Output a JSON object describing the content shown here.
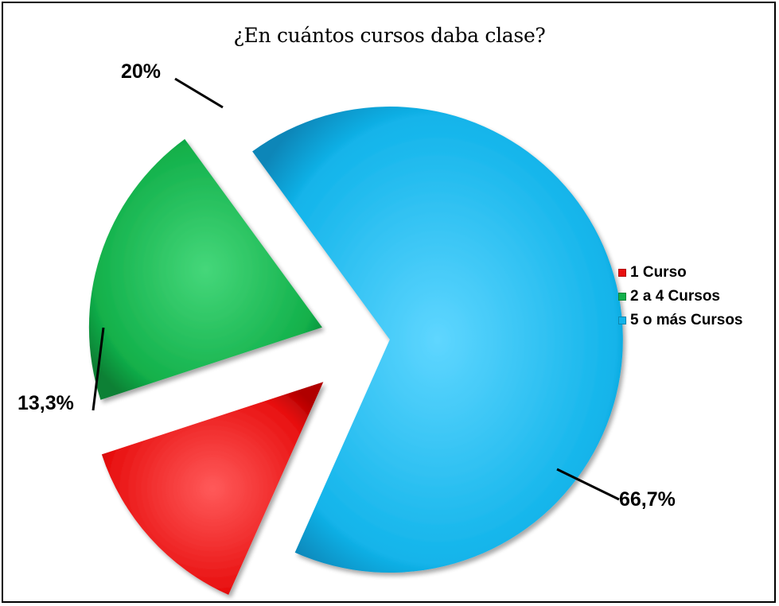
{
  "chart_data": {
    "type": "pie",
    "title": "¿En cuántos cursos daba clase?",
    "categories": [
      "1 Curso",
      "2 a 4 Cursos",
      "5 o más Cursos"
    ],
    "values": [
      13.3,
      20,
      66.7
    ],
    "data_labels": [
      "13,3%",
      "20%",
      "66,7%"
    ],
    "colors": [
      "#e81010",
      "#12b04a",
      "#12b4ea"
    ],
    "exploded": true,
    "legend_position": "right"
  }
}
